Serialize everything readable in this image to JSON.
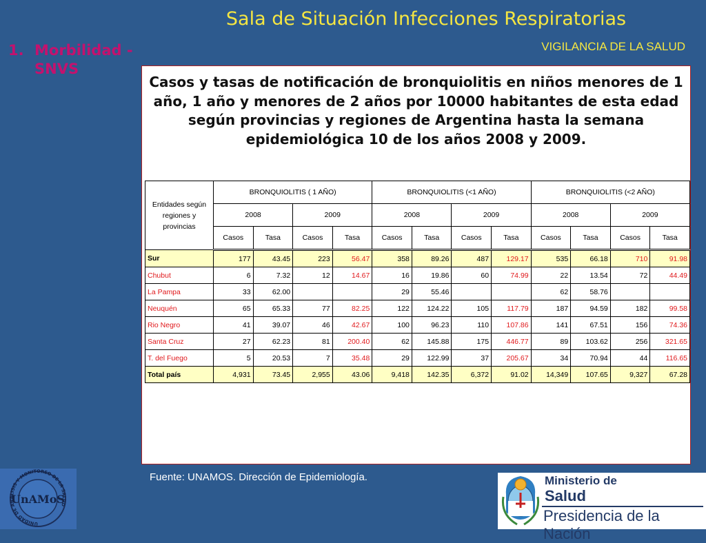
{
  "header": {
    "title": "Sala de Situación Infecciones Respiratorias",
    "subtitle": "VIGILANCIA DE LA SALUD"
  },
  "section": {
    "number": "1.",
    "line1": "Morbilidad -",
    "line2": "SNVS"
  },
  "panel": {
    "heading": "Casos y tasas de notificación  de bronquiolitis en niños menores de 1 año, 1 año y menores de 2 años por 10000 habitantes de esta edad según provincias y regiones de Argentina hasta la semana epidemiológica 10 de los años 2008 y 2009."
  },
  "table": {
    "corner_header": "Entidades según regiones y provincias",
    "groups": [
      "BRONQUIOLITIS ( 1 AÑO)",
      "BRONQUIOLITIS (<1 AÑO)",
      "BRONQUIOLITIS (<2 AÑO)"
    ],
    "years": [
      "2008",
      "2009",
      "2008",
      "2009",
      "2008",
      "2009"
    ],
    "subcols": [
      "Casos",
      "Tasa",
      "Casos",
      "Tasa",
      "Casos",
      "Tasa",
      "Casos",
      "Tasa",
      "Casos",
      "Tasa",
      "Casos",
      "Tasa"
    ],
    "rows": [
      {
        "name": "Sur",
        "cells": [
          "177",
          "43.45",
          "223",
          "56.47",
          "358",
          "89.26",
          "487",
          "129.17",
          "535",
          "66.18",
          "710",
          "91.98"
        ]
      },
      {
        "name": "Chubut",
        "cells": [
          "6",
          "7.32",
          "12",
          "14.67",
          "16",
          "19.86",
          "60",
          "74.99",
          "22",
          "13.54",
          "72",
          "44.49"
        ]
      },
      {
        "name": "La Pampa",
        "cells": [
          "33",
          "62.00",
          "",
          "",
          "29",
          "55.46",
          "",
          "",
          "62",
          "58.76",
          "",
          ""
        ]
      },
      {
        "name": "Neuquén",
        "cells": [
          "65",
          "65.33",
          "77",
          "82.25",
          "122",
          "124.22",
          "105",
          "117.79",
          "187",
          "94.59",
          "182",
          "99.58"
        ]
      },
      {
        "name": "Rio Negro",
        "cells": [
          "41",
          "39.07",
          "46",
          "42.67",
          "100",
          "96.23",
          "110",
          "107.86",
          "141",
          "67.51",
          "156",
          "74.36"
        ]
      },
      {
        "name": "Santa Cruz",
        "cells": [
          "27",
          "62.23",
          "81",
          "200.40",
          "62",
          "145.88",
          "175",
          "446.77",
          "89",
          "103.62",
          "256",
          "321.65"
        ]
      },
      {
        "name": "T. del Fuego",
        "cells": [
          "5",
          "20.53",
          "7",
          "35.48",
          "29",
          "122.99",
          "37",
          "205.67",
          "34",
          "70.94",
          "44",
          "116.65"
        ]
      },
      {
        "name": "Total país",
        "cells": [
          "4,931",
          "73.45",
          "2,955",
          "43.06",
          "9,418",
          "142.35",
          "6,372",
          "91.02",
          "14,349",
          "107.65",
          "9,327",
          "67.28"
        ]
      }
    ]
  },
  "footer": {
    "source": "Fuente: UNAMOS. Dirección de Epidemiología."
  },
  "logos": {
    "unamos_text": "UnAMoS",
    "unamos_ring": "UNIDAD DE ANALISIS Y MONITOREO DE LA SALUD",
    "ministry_line1": "Ministerio de",
    "ministry_line2": "Salud",
    "ministry_line3": "Presidencia de la Nación"
  },
  "colors": {
    "background": "#2d5a8e",
    "title": "#f5e642",
    "section": "#c4126e",
    "highlight_red": "#e0181b",
    "row_highlight": "#ffffc4"
  }
}
